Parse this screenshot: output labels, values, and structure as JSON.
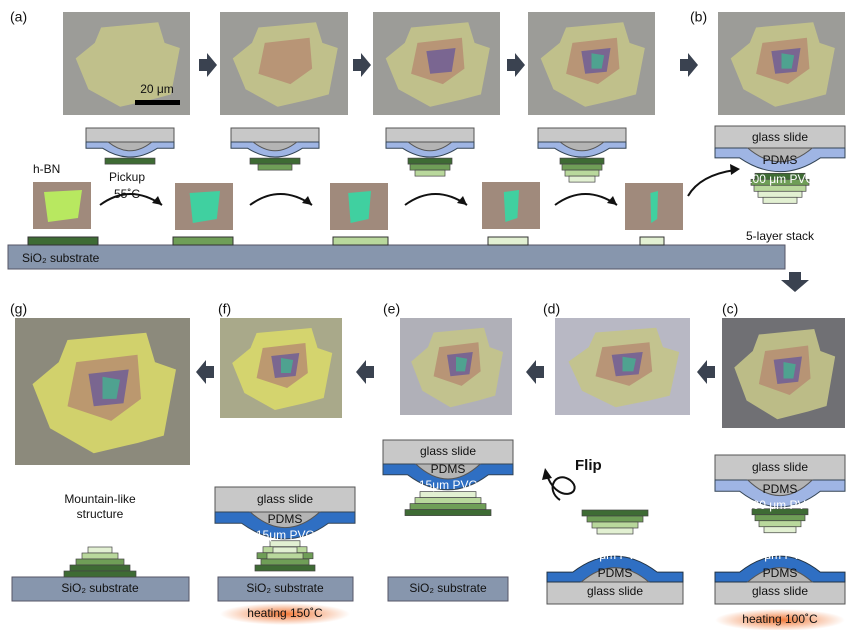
{
  "panel_labels": [
    "(a)",
    "(b)",
    "(c)",
    "(d)",
    "(e)",
    "(f)",
    "(g)"
  ],
  "scale_bar": "20 μm",
  "top_row": {
    "flake_label": "h-BN",
    "pickup": "Pickup",
    "pickup_temp": "55˚C",
    "substrate": "SiO₂ substrate",
    "stack": {
      "glass": "glass slide",
      "pdms": "PDMS",
      "pvc": "100 μm PVC"
    },
    "stack_caption": "5-layer stack"
  },
  "c_stack": {
    "glass_top": "glass slide",
    "pdms_top": "PDMS",
    "pvc_top": "100 μm PVC",
    "pvc_bottom": "15μm PVC",
    "pdms_bottom": "PDMS",
    "glass_bottom": "glass slide",
    "heating": "heating 100˚C"
  },
  "d_stack": {
    "flip": "Flip",
    "pvc": "15μm PVC",
    "pdms": "PDMS",
    "glass": "glass slide"
  },
  "e_stack": {
    "glass": "glass slide",
    "pdms": "PDMS",
    "pvc": "15μm PVC",
    "substrate": "SiO₂ substrate"
  },
  "f_stack": {
    "glass": "glass slide",
    "pdms": "PDMS",
    "pvc": "15μm PVC",
    "substrate": "SiO₂ substrate",
    "heating": "heating 150˚C"
  },
  "g_panel": {
    "caption": [
      "Mountain-like",
      "structure"
    ],
    "substrate": "SiO₂ substrate"
  }
}
